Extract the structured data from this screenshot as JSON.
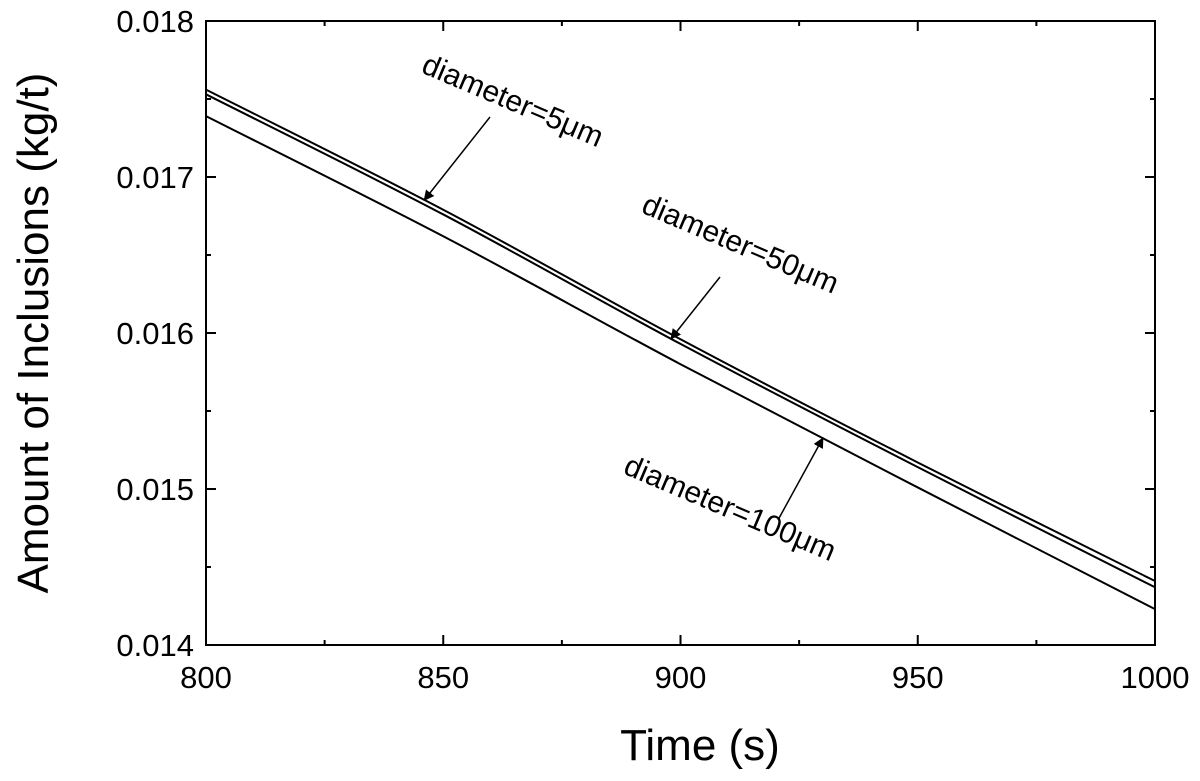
{
  "chart_data": {
    "type": "line",
    "title": "",
    "xlabel": "Time (s)",
    "ylabel": "Amount of Inclusions (kg/t)",
    "xlim": [
      800,
      1000
    ],
    "ylim": [
      0.014,
      0.018
    ],
    "xticks": [
      800,
      850,
      900,
      950,
      1000
    ],
    "xtick_labels": [
      "800",
      "850",
      "900",
      "950",
      "1000"
    ],
    "yticks": [
      0.014,
      0.015,
      0.016,
      0.017,
      0.018
    ],
    "ytick_labels": [
      "0.014",
      "0.015",
      "0.016",
      "0.017",
      "0.018"
    ],
    "grid": false,
    "legend": "none",
    "line_color": "#000000",
    "series": [
      {
        "name": "diameter=5μm",
        "x": [
          800,
          850,
          900,
          950,
          1000
        ],
        "y": [
          0.01756,
          0.01679,
          0.01596,
          0.01517,
          0.01441
        ]
      },
      {
        "name": "diameter=50μm",
        "x": [
          800,
          850,
          900,
          950,
          1000
        ],
        "y": [
          0.01753,
          0.01676,
          0.01593,
          0.01514,
          0.01437
        ]
      },
      {
        "name": "diameter=100μm",
        "x": [
          800,
          850,
          900,
          950,
          1000
        ],
        "y": [
          0.01739,
          0.01662,
          0.0158,
          0.01501,
          0.01423
        ]
      }
    ],
    "annotations": [
      {
        "text": "diameter=5μm",
        "series": 0,
        "point_x": 846
      },
      {
        "text": "diameter=50μm",
        "series": 1,
        "point_x": 898
      },
      {
        "text": "diameter=100μm",
        "series": 2,
        "point_x": 930
      }
    ]
  }
}
